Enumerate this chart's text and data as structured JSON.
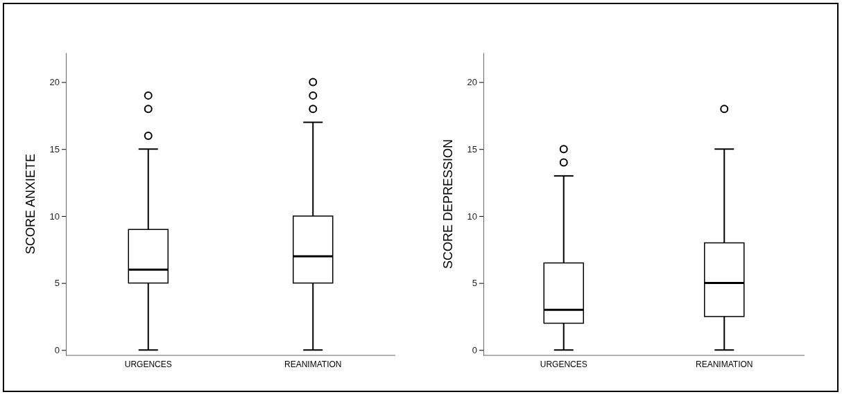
{
  "chart_data": [
    {
      "type": "box",
      "ylabel": "SCORE ANXIETE",
      "categories": [
        "URGENCES",
        "REANIMATION"
      ],
      "ylim": [
        -0.4,
        22.2
      ],
      "yticks": [
        0,
        5,
        10,
        15,
        20
      ],
      "grid": false,
      "color": "#000000",
      "boxes": [
        {
          "low": 0,
          "q1": 5,
          "median": 6,
          "q3": 9,
          "high": 15,
          "outliers": [
            16,
            18,
            19
          ]
        },
        {
          "low": 0,
          "q1": 5,
          "median": 7,
          "q3": 10,
          "high": 17,
          "outliers": [
            18,
            19,
            20
          ]
        }
      ]
    },
    {
      "type": "box",
      "ylabel": "SCORE DEPRESSION",
      "categories": [
        "URGENCES",
        "REANIMATION"
      ],
      "ylim": [
        -0.4,
        22.2
      ],
      "yticks": [
        0,
        5,
        10,
        15,
        20
      ],
      "grid": false,
      "color": "#000000",
      "boxes": [
        {
          "low": 0,
          "q1": 2,
          "median": 3,
          "q3": 6.5,
          "high": 13,
          "outliers": [
            14,
            15
          ]
        },
        {
          "low": 0,
          "q1": 2.5,
          "median": 5,
          "q3": 8,
          "high": 15,
          "outliers": [
            18
          ]
        }
      ]
    }
  ]
}
